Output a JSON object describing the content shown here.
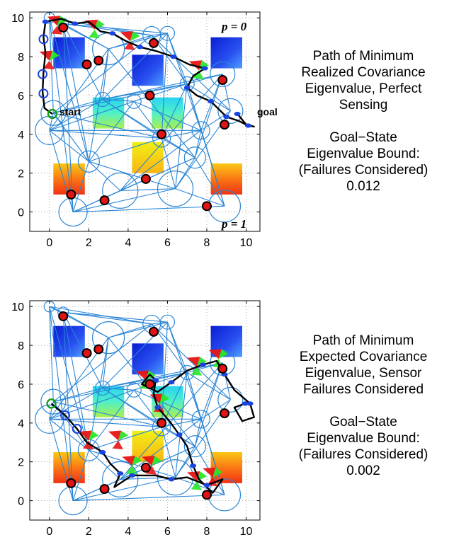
{
  "axes": {
    "x_ticks": [
      "0",
      "2",
      "4",
      "6",
      "8",
      "10"
    ],
    "y_ticks": [
      "0",
      "2",
      "4",
      "6",
      "8",
      "10"
    ],
    "xlim": [
      -1,
      10.7
    ],
    "ylim": [
      -1,
      10.3
    ],
    "grid": true
  },
  "panels": [
    {
      "caption_lines": [
        "Path of Minimum",
        "Realized Covariance",
        "Eigenvalue, Perfect",
        "Sensing"
      ],
      "bound_lines": [
        "Goal−State",
        "Eigenvalue Bound:",
        "(Failures Considered)",
        "0.012"
      ],
      "label_start": "start",
      "label_goal": "goal",
      "label_p0": "p = 0",
      "label_p1": "p = 1"
    },
    {
      "caption_lines": [
        "Path of Minimum",
        "Expected Covariance",
        "Eigenvalue, Sensor",
        "Failures Considered"
      ],
      "bound_lines": [
        "Goal−State",
        "Eigenvalue Bound:",
        "(Failures Considered)",
        "0.002"
      ]
    }
  ],
  "chart_data": {
    "type": "scatter",
    "obstacles": [
      {
        "x": 1.0,
        "y": 8.2,
        "scheme": "blue"
      },
      {
        "x": 5.0,
        "y": 7.3,
        "scheme": "blue"
      },
      {
        "x": 9.0,
        "y": 8.2,
        "scheme": "blue"
      },
      {
        "x": 3.0,
        "y": 5.1,
        "scheme": "cyan"
      },
      {
        "x": 6.0,
        "y": 5.1,
        "scheme": "cyan"
      },
      {
        "x": 5.0,
        "y": 2.8,
        "scheme": "yellow"
      },
      {
        "x": 1.0,
        "y": 1.7,
        "scheme": "orange"
      },
      {
        "x": 9.0,
        "y": 1.7,
        "scheme": "orange"
      }
    ],
    "beacons": [
      {
        "x": 0.7,
        "y": 9.5
      },
      {
        "x": 1.9,
        "y": 7.6
      },
      {
        "x": 2.5,
        "y": 7.8
      },
      {
        "x": 5.3,
        "y": 8.7
      },
      {
        "x": 5.1,
        "y": 6.0
      },
      {
        "x": 8.8,
        "y": 6.8
      },
      {
        "x": 5.7,
        "y": 4.0
      },
      {
        "x": 8.9,
        "y": 4.5
      },
      {
        "x": 4.9,
        "y": 1.7
      },
      {
        "x": 1.1,
        "y": 0.9
      },
      {
        "x": 2.8,
        "y": 0.6
      },
      {
        "x": 8.0,
        "y": 0.3
      }
    ],
    "graph_nodes": [
      {
        "x": 0.0,
        "y": 10.0,
        "r": 0.3
      },
      {
        "x": 0.7,
        "y": 9.7,
        "r": 0.3
      },
      {
        "x": 5.2,
        "y": 9.1,
        "r": 0.5
      },
      {
        "x": 3.0,
        "y": 8.4,
        "r": 0.9
      },
      {
        "x": 8.8,
        "y": 7.1,
        "r": 0.7
      },
      {
        "x": 0.2,
        "y": 5.1,
        "r": 0.7
      },
      {
        "x": 0.0,
        "y": 4.2,
        "r": 0.8
      },
      {
        "x": 9.2,
        "y": 5.2,
        "r": 0.7
      },
      {
        "x": 7.7,
        "y": 4.2,
        "r": 0.5
      },
      {
        "x": 3.6,
        "y": 1.1,
        "r": 1.0
      },
      {
        "x": 6.4,
        "y": 1.2,
        "r": 1.0
      },
      {
        "x": 8.9,
        "y": 0.3,
        "r": 0.9
      },
      {
        "x": 5.7,
        "y": 3.8,
        "r": 0.5
      },
      {
        "x": 2.7,
        "y": 5.8,
        "r": 0.4
      },
      {
        "x": 4.3,
        "y": 5.7,
        "r": 0.4
      },
      {
        "x": 7.0,
        "y": 6.6,
        "r": 0.4
      },
      {
        "x": 2.0,
        "y": 2.6,
        "r": 0.6
      },
      {
        "x": 7.4,
        "y": 2.8,
        "r": 0.6
      },
      {
        "x": 1.2,
        "y": 0.0,
        "r": 0.8
      },
      {
        "x": 6.0,
        "y": 9.2,
        "r": 0.4
      }
    ],
    "paths": [
      {
        "panel": 1,
        "points": [
          [
            0.15,
            5.05
          ],
          [
            -0.25,
            5.35
          ],
          [
            -0.35,
            6.2
          ],
          [
            -0.3,
            7.2
          ],
          [
            -0.2,
            8.2
          ],
          [
            -0.3,
            9.0
          ],
          [
            -0.2,
            9.8
          ],
          [
            0.6,
            9.95
          ],
          [
            1.3,
            9.7
          ],
          [
            2.0,
            9.8
          ],
          [
            2.6,
            9.3
          ],
          [
            3.2,
            9.2
          ],
          [
            3.9,
            8.8
          ],
          [
            4.6,
            8.5
          ],
          [
            5.4,
            8.3
          ],
          [
            6.3,
            8.0
          ],
          [
            7.1,
            7.6
          ],
          [
            7.9,
            7.4
          ],
          [
            7.3,
            7.0
          ],
          [
            7.0,
            6.4
          ],
          [
            7.5,
            6.0
          ],
          [
            8.2,
            5.7
          ],
          [
            8.6,
            5.3
          ],
          [
            9.0,
            4.9
          ],
          [
            9.6,
            4.7
          ],
          [
            10.1,
            4.45
          ],
          [
            10.4,
            4.4
          ],
          [
            10.0,
            4.5
          ],
          [
            9.6,
            5.0
          ],
          [
            9.55,
            5.05
          ]
        ],
        "waypoints": [
          [
            0.15,
            5.05
          ],
          [
            -0.3,
            6.1
          ],
          [
            -0.35,
            7.1
          ],
          [
            -0.3,
            8.9
          ],
          [
            -0.2,
            9.8
          ],
          [
            1.3,
            9.7
          ],
          [
            3.2,
            9.2
          ],
          [
            4.6,
            8.5
          ],
          [
            6.3,
            8.0
          ],
          [
            7.9,
            7.4
          ],
          [
            7.0,
            6.4
          ],
          [
            8.2,
            5.7
          ],
          [
            9.0,
            4.9
          ],
          [
            10.1,
            4.45
          ],
          [
            9.55,
            5.05
          ]
        ],
        "fans": [
          [
            0.4,
            9.6
          ],
          [
            2.3,
            9.4
          ],
          [
            4.1,
            8.8
          ],
          [
            7.6,
            7.3
          ],
          [
            0.0,
            7.8
          ]
        ]
      },
      {
        "panel": 2,
        "points": [
          [
            0.1,
            5.0
          ],
          [
            0.8,
            4.4
          ],
          [
            1.4,
            3.7
          ],
          [
            1.9,
            3.0
          ],
          [
            2.7,
            2.5
          ],
          [
            3.1,
            1.9
          ],
          [
            3.6,
            1.4
          ],
          [
            3.3,
            0.7
          ],
          [
            4.2,
            1.3
          ],
          [
            5.4,
            1.3
          ],
          [
            6.2,
            1.1
          ],
          [
            7.0,
            1.2
          ],
          [
            8.0,
            0.8
          ],
          [
            8.8,
            1.1
          ],
          [
            8.3,
            0.4
          ],
          [
            7.6,
            1.1
          ],
          [
            7.3,
            1.8
          ],
          [
            7.0,
            2.8
          ],
          [
            6.6,
            3.4
          ],
          [
            6.1,
            4.1
          ],
          [
            5.5,
            4.8
          ],
          [
            5.3,
            5.5
          ],
          [
            5.4,
            6.2
          ],
          [
            5.1,
            6.5
          ],
          [
            4.7,
            6.0
          ],
          [
            5.5,
            5.6
          ],
          [
            6.2,
            6.1
          ],
          [
            7.0,
            6.7
          ],
          [
            7.8,
            7.0
          ],
          [
            8.5,
            7.2
          ],
          [
            8.9,
            6.5
          ],
          [
            9.4,
            5.7
          ],
          [
            10.2,
            5.0
          ],
          [
            10.4,
            4.3
          ],
          [
            9.8,
            4.1
          ],
          [
            9.4,
            4.8
          ],
          [
            9.95,
            5.0
          ]
        ],
        "waypoints": [
          [
            0.1,
            5.0
          ],
          [
            0.8,
            4.4
          ],
          [
            1.4,
            3.7
          ],
          [
            2.7,
            2.5
          ],
          [
            3.6,
            1.4
          ],
          [
            4.2,
            1.3
          ],
          [
            6.2,
            1.1
          ],
          [
            8.0,
            0.8
          ],
          [
            7.3,
            1.8
          ],
          [
            6.6,
            3.4
          ],
          [
            5.5,
            4.8
          ],
          [
            5.4,
            6.2
          ],
          [
            6.2,
            6.1
          ],
          [
            7.8,
            7.0
          ],
          [
            8.9,
            6.5
          ],
          [
            10.2,
            5.0
          ],
          [
            9.95,
            5.0
          ]
        ],
        "fans": [
          [
            2.0,
            3.1
          ],
          [
            4.2,
            1.8
          ],
          [
            5.2,
            1.8
          ],
          [
            7.5,
            1.0
          ],
          [
            8.3,
            1.2
          ],
          [
            4.9,
            6.2
          ],
          [
            5.6,
            5.0
          ],
          [
            7.5,
            6.9
          ],
          [
            3.5,
            3.1
          ],
          [
            8.6,
            7.3
          ]
        ]
      }
    ]
  }
}
